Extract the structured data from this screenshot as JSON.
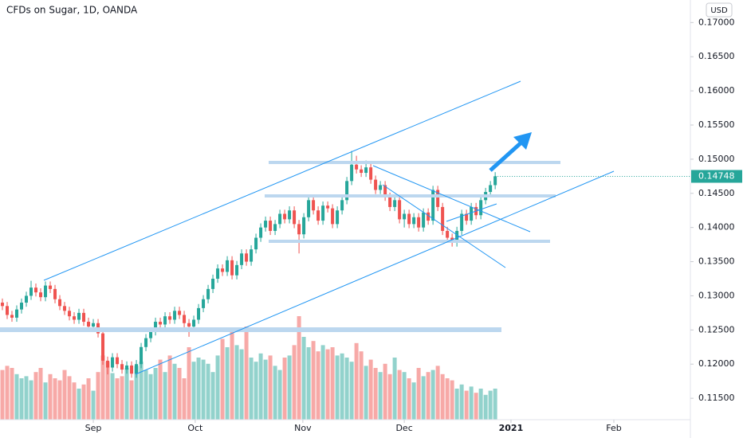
{
  "chart_data": {
    "type": "candlestick",
    "title": "CFDs on Sugar, 1D, OANDA",
    "currency": "USD",
    "up_color": "#26a69a",
    "down_color": "#ef5350",
    "open": [
      0.129,
      0.1285,
      0.1272,
      0.1268,
      0.128,
      0.129,
      0.13,
      0.1312,
      0.1305,
      0.1298,
      0.1315,
      0.131,
      0.1295,
      0.1285,
      0.1278,
      0.127,
      0.1265,
      0.1275,
      0.1262,
      0.1255,
      0.126,
      0.1245,
      0.1205,
      0.1195,
      0.121,
      0.12,
      0.1192,
      0.1198,
      0.1186,
      0.12,
      0.1225,
      0.1238,
      0.1248,
      0.1262,
      0.1258,
      0.127,
      0.1265,
      0.1278,
      0.1272,
      0.126,
      0.1255,
      0.1265,
      0.1282,
      0.1295,
      0.131,
      0.1325,
      0.134,
      0.1335,
      0.1352,
      0.133,
      0.1345,
      0.1362,
      0.135,
      0.1368,
      0.1385,
      0.14,
      0.141,
      0.1395,
      0.1405,
      0.142,
      0.1412,
      0.1425,
      0.1405,
      0.139,
      0.1415,
      0.144,
      0.1425,
      0.141,
      0.1432,
      0.1428,
      0.1405,
      0.1425,
      0.144,
      0.1468,
      0.1492,
      0.1485,
      0.148,
      0.1488,
      0.147,
      0.1455,
      0.1462,
      0.1445,
      0.143,
      0.144,
      0.1412,
      0.142,
      0.1405,
      0.1415,
      0.14,
      0.1422,
      0.141,
      0.1455,
      0.143,
      0.1395,
      0.1385,
      0.1378,
      0.1395,
      0.142,
      0.141,
      0.143,
      0.1418,
      0.144,
      0.1452,
      0.1462
    ],
    "high": [
      0.1296,
      0.1291,
      0.1278,
      0.1286,
      0.1296,
      0.1306,
      0.1322,
      0.1318,
      0.1311,
      0.1321,
      0.1321,
      0.1316,
      0.1301,
      0.1291,
      0.1284,
      0.1276,
      0.1281,
      0.1281,
      0.1268,
      0.1266,
      0.1266,
      0.1251,
      0.1211,
      0.1216,
      0.1216,
      0.1206,
      0.1204,
      0.1204,
      0.1206,
      0.1231,
      0.1244,
      0.1254,
      0.1268,
      0.1268,
      0.1276,
      0.1276,
      0.1284,
      0.1284,
      0.1278,
      0.1266,
      0.1271,
      0.1288,
      0.1301,
      0.1316,
      0.1331,
      0.1346,
      0.1346,
      0.1358,
      0.1358,
      0.1351,
      0.1368,
      0.1368,
      0.1374,
      0.1391,
      0.1406,
      0.1416,
      0.1416,
      0.1411,
      0.1426,
      0.1426,
      0.1431,
      0.1431,
      0.1411,
      0.1421,
      0.1446,
      0.1446,
      0.1431,
      0.1438,
      0.1438,
      0.1434,
      0.1431,
      0.1446,
      0.1474,
      0.1512,
      0.1505,
      0.1491,
      0.1498,
      0.1494,
      0.1476,
      0.1468,
      0.1468,
      0.1451,
      0.1446,
      0.1446,
      0.1426,
      0.1426,
      0.1421,
      0.1421,
      0.1428,
      0.1428,
      0.1461,
      0.1461,
      0.1436,
      0.1401,
      0.1391,
      0.1401,
      0.1426,
      0.1426,
      0.1436,
      0.1436,
      0.1446,
      0.1458,
      0.1468,
      0.1481
    ],
    "low": [
      0.1279,
      0.1266,
      0.1262,
      0.1262,
      0.1274,
      0.1284,
      0.1294,
      0.1299,
      0.1292,
      0.1292,
      0.1304,
      0.1289,
      0.1279,
      0.1272,
      0.1264,
      0.1259,
      0.1259,
      0.1256,
      0.1249,
      0.1249,
      0.1239,
      0.1199,
      0.1185,
      0.1189,
      0.1194,
      0.1186,
      0.1186,
      0.118,
      0.118,
      0.1194,
      0.1219,
      0.1232,
      0.1242,
      0.1252,
      0.1252,
      0.1259,
      0.1259,
      0.1266,
      0.1254,
      0.124,
      0.1249,
      0.1259,
      0.1276,
      0.1289,
      0.1304,
      0.1319,
      0.1329,
      0.1329,
      0.1324,
      0.1324,
      0.1339,
      0.1344,
      0.1344,
      0.1362,
      0.1379,
      0.1394,
      0.1389,
      0.1389,
      0.1399,
      0.1406,
      0.1406,
      0.1399,
      0.1362,
      0.1384,
      0.1409,
      0.1419,
      0.1404,
      0.1404,
      0.1422,
      0.1399,
      0.1399,
      0.1419,
      0.1434,
      0.1462,
      0.1479,
      0.1474,
      0.1474,
      0.1464,
      0.1449,
      0.1449,
      0.1439,
      0.1424,
      0.1424,
      0.1406,
      0.14,
      0.1399,
      0.1399,
      0.1394,
      0.1394,
      0.1404,
      0.1404,
      0.1424,
      0.1389,
      0.1379,
      0.1372,
      0.1372,
      0.1389,
      0.1404,
      0.1404,
      0.1412,
      0.1412,
      0.1434,
      0.1446,
      0.1456
    ],
    "close": [
      0.1285,
      0.1272,
      0.1268,
      0.128,
      0.129,
      0.13,
      0.1312,
      0.1305,
      0.1298,
      0.1315,
      0.131,
      0.1295,
      0.1285,
      0.1278,
      0.127,
      0.1265,
      0.1275,
      0.1262,
      0.1255,
      0.126,
      0.1245,
      0.1205,
      0.1195,
      0.121,
      0.12,
      0.1192,
      0.1198,
      0.1186,
      0.12,
      0.1225,
      0.1238,
      0.1248,
      0.1262,
      0.1258,
      0.127,
      0.1265,
      0.1278,
      0.1272,
      0.126,
      0.1255,
      0.1265,
      0.1282,
      0.1295,
      0.131,
      0.1325,
      0.134,
      0.1335,
      0.1352,
      0.133,
      0.1345,
      0.1362,
      0.135,
      0.1368,
      0.1385,
      0.14,
      0.141,
      0.1395,
      0.1405,
      0.142,
      0.1412,
      0.1425,
      0.1405,
      0.139,
      0.1415,
      0.144,
      0.1425,
      0.141,
      0.1432,
      0.1428,
      0.1405,
      0.1425,
      0.144,
      0.1468,
      0.1492,
      0.1485,
      0.148,
      0.1488,
      0.147,
      0.1455,
      0.1462,
      0.1445,
      0.143,
      0.144,
      0.1412,
      0.142,
      0.1405,
      0.1415,
      0.14,
      0.1422,
      0.141,
      0.1455,
      0.143,
      0.1395,
      0.1385,
      0.1378,
      0.1395,
      0.142,
      0.141,
      0.143,
      0.1418,
      0.144,
      0.1452,
      0.1462,
      0.1475
    ],
    "volume": [
      48,
      52,
      50,
      44,
      40,
      42,
      38,
      46,
      50,
      36,
      44,
      40,
      38,
      48,
      42,
      36,
      30,
      34,
      40,
      28,
      46,
      62,
      56,
      45,
      40,
      42,
      50,
      38,
      52,
      56,
      48,
      44,
      50,
      58,
      46,
      62,
      54,
      50,
      40,
      70,
      56,
      60,
      58,
      54,
      46,
      62,
      78,
      70,
      86,
      72,
      68,
      90,
      60,
      56,
      64,
      58,
      62,
      52,
      48,
      60,
      62,
      72,
      100,
      80,
      70,
      76,
      66,
      72,
      68,
      70,
      62,
      64,
      60,
      56,
      74,
      66,
      52,
      58,
      50,
      46,
      54,
      44,
      60,
      48,
      46,
      40,
      36,
      50,
      42,
      46,
      48,
      52,
      44,
      40,
      38,
      30,
      34,
      28,
      32,
      26,
      30,
      24,
      28,
      30
    ],
    "volume_lim": [
      0,
      100
    ],
    "xlim": [
      -0.5,
      143.8
    ],
    "xticks": [
      {
        "value": 19,
        "label": "Sep"
      },
      {
        "value": 40.3,
        "label": "Oct"
      },
      {
        "value": 62.8,
        "label": "Nov"
      },
      {
        "value": 84,
        "label": "Dec"
      },
      {
        "value": 106.3,
        "label": "2021"
      },
      {
        "value": 127.8,
        "label": "Feb"
      }
    ],
    "ylim": [
      0.1121,
      0.1733
    ],
    "yticks": [
      {
        "value": 0.17,
        "label": "0.17000"
      },
      {
        "value": 0.165,
        "label": "0.16500"
      },
      {
        "value": 0.16,
        "label": "0.16000"
      },
      {
        "value": 0.155,
        "label": "0.15500"
      },
      {
        "value": 0.15,
        "label": "0.15000"
      },
      {
        "value": 0.145,
        "label": "0.14500"
      },
      {
        "value": 0.14,
        "label": "0.14000"
      },
      {
        "value": 0.135,
        "label": "0.13500"
      },
      {
        "value": 0.13,
        "label": "0.13000"
      },
      {
        "value": 0.125,
        "label": "0.12500"
      },
      {
        "value": 0.12,
        "label": "0.12000"
      },
      {
        "value": 0.115,
        "label": "0.11500"
      }
    ],
    "last_price": {
      "value": 0.14748,
      "label": "0.14748"
    }
  }
}
